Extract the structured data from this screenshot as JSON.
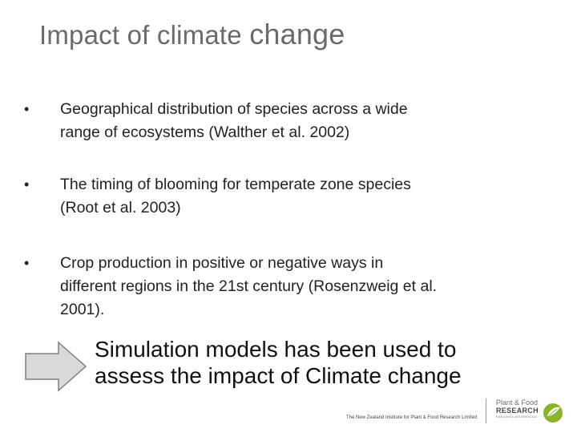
{
  "slide": {
    "title_part1": "Impact of climate ",
    "title_part2": "change",
    "bullets": [
      {
        "marker": "•",
        "line1": "Geographical distribution of species across a wide",
        "line2": "range of ecosystems (Walther et al. 2002)"
      },
      {
        "marker": "•",
        "line1": "The timing of blooming for temperate zone species",
        "line2": "(Root et al. 2003)"
      },
      {
        "marker": "•",
        "line1": "Crop production in positive or negative ways in",
        "line2": "different regions in the 21st century (Rosenzweig et al.",
        "line3": "2001)."
      }
    ],
    "callout_line1": "Simulation models has been used to",
    "callout_line2": "assess the impact of Climate change"
  },
  "footer": {
    "org_text": "The New Zealand Institute for Plant & Food Research Limited",
    "logo_line1": "Plant & Food",
    "logo_line2": "RESEARCH",
    "logo_line3": "RANGAHAU AHUMARA KAI"
  },
  "colors": {
    "title": "#6a6a6a",
    "arrow_fill": "#d9d9d9",
    "arrow_stroke": "#7f7f7f",
    "logo_green": "#8ab52a"
  },
  "icons": {
    "arrow": "right-arrow-icon",
    "logo": "leaf-logo-icon"
  }
}
